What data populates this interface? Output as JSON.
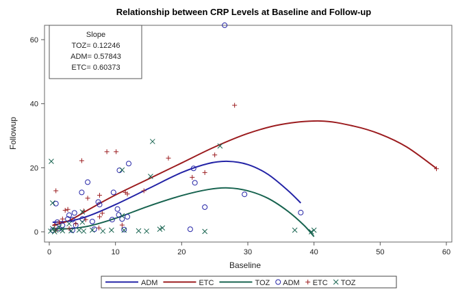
{
  "chart_data": {
    "type": "scatter",
    "title": "Relationship between CRP Levels at Baseline and Follow-up",
    "xlabel": "Baseline",
    "ylabel": "Followup",
    "xlim": [
      -1,
      61
    ],
    "ylim": [
      -3,
      66
    ],
    "xticks": [
      0,
      10,
      20,
      30,
      40,
      50,
      60
    ],
    "yticks": [
      0,
      20,
      40,
      60
    ],
    "grid": false,
    "inset": {
      "title": "Slope",
      "lines": [
        "TOZ= 0.12246",
        "ADM= 0.57843",
        "ETC= 0.60373"
      ]
    },
    "legend": {
      "placement": "bottom",
      "entries": [
        {
          "label": "ADM",
          "kind": "line",
          "color": "#2323a6"
        },
        {
          "label": "ETC",
          "kind": "line",
          "color": "#9b1b1e"
        },
        {
          "label": "TOZ",
          "kind": "line",
          "color": "#17634f"
        },
        {
          "label": "ADM",
          "kind": "circle",
          "color": "#2323a6"
        },
        {
          "label": "ETC",
          "kind": "plus",
          "color": "#9b1b1e"
        },
        {
          "label": "TOZ",
          "kind": "x",
          "color": "#17634f"
        }
      ]
    },
    "fits": [
      {
        "name": "ADM",
        "color": "#2323a6",
        "points": [
          [
            0.5,
            3
          ],
          [
            3,
            3.3
          ],
          [
            6,
            5
          ],
          [
            10,
            8.5
          ],
          [
            15,
            13.5
          ],
          [
            20,
            18.5
          ],
          [
            24,
            21.3
          ],
          [
            27,
            22
          ],
          [
            30,
            21
          ],
          [
            33,
            18
          ],
          [
            36,
            13
          ],
          [
            38,
            9
          ]
        ]
      },
      {
        "name": "ETC",
        "color": "#9b1b1e",
        "points": [
          [
            0.5,
            2
          ],
          [
            3,
            3.5
          ],
          [
            6,
            7
          ],
          [
            10,
            11.5
          ],
          [
            15,
            16.5
          ],
          [
            20,
            21.5
          ],
          [
            25,
            26.5
          ],
          [
            30,
            30.7
          ],
          [
            35,
            33.5
          ],
          [
            41,
            34.6
          ],
          [
            46,
            33
          ],
          [
            50,
            30.5
          ],
          [
            54,
            26.5
          ],
          [
            58.5,
            19.8
          ]
        ]
      },
      {
        "name": "TOZ",
        "color": "#17634f",
        "points": [
          [
            0.5,
            1
          ],
          [
            3,
            1
          ],
          [
            6,
            1.8
          ],
          [
            10,
            4.2
          ],
          [
            15,
            8
          ],
          [
            20,
            11.3
          ],
          [
            24,
            13.2
          ],
          [
            27,
            13.7
          ],
          [
            30,
            12.8
          ],
          [
            33,
            10.5
          ],
          [
            36,
            6.5
          ],
          [
            38.5,
            2
          ],
          [
            40,
            -1.5
          ]
        ]
      }
    ],
    "series": [
      {
        "name": "ADM",
        "marker": "circle",
        "color": "#2323a6",
        "points": [
          [
            26.5,
            64.5
          ],
          [
            29.5,
            11.7
          ],
          [
            38,
            6
          ],
          [
            23.5,
            7.7
          ],
          [
            21.8,
            19.8
          ],
          [
            22,
            15.3
          ],
          [
            21.3,
            0.8
          ],
          [
            12,
            21.3
          ],
          [
            10.6,
            19.2
          ],
          [
            5.8,
            15.5
          ],
          [
            4.9,
            12.3
          ],
          [
            9.7,
            12.3
          ],
          [
            7.4,
            9.3
          ],
          [
            7.6,
            8.5
          ],
          [
            10.3,
            7.1
          ],
          [
            10.5,
            5.3
          ],
          [
            11,
            4
          ],
          [
            11.8,
            4.7
          ],
          [
            9.5,
            3.8
          ],
          [
            6.5,
            3.2
          ],
          [
            5,
            4
          ],
          [
            3,
            5.2
          ],
          [
            3.8,
            5.9
          ],
          [
            3.5,
            3.8
          ],
          [
            1,
            8.8
          ],
          [
            1.2,
            3
          ],
          [
            2,
            2
          ],
          [
            2.8,
            4
          ],
          [
            3.5,
            0.5
          ],
          [
            6.8,
            0.8
          ],
          [
            11.3,
            0.7
          ],
          [
            1.5,
            1
          ],
          [
            0.5,
            0.5
          ],
          [
            4,
            2
          ]
        ]
      },
      {
        "name": "ETC",
        "marker": "plus",
        "color": "#9b1b1e",
        "points": [
          [
            28,
            39.5
          ],
          [
            58.5,
            19.7
          ],
          [
            25,
            24
          ],
          [
            23.5,
            18.5
          ],
          [
            21.6,
            17
          ],
          [
            18,
            23
          ],
          [
            14.3,
            12.8
          ],
          [
            11.5,
            12.3
          ],
          [
            11.8,
            11.8
          ],
          [
            8.7,
            25
          ],
          [
            10.1,
            25
          ],
          [
            4.9,
            22.2
          ],
          [
            1,
            12.8
          ],
          [
            5.8,
            10.5
          ],
          [
            7.6,
            11.4
          ],
          [
            7.6,
            4.7
          ],
          [
            8,
            5.8
          ],
          [
            2.4,
            6.7
          ],
          [
            2.8,
            7
          ],
          [
            5.2,
            6.5
          ],
          [
            11,
            2.1
          ],
          [
            5.5,
            3.8
          ],
          [
            4,
            2.5
          ],
          [
            1.5,
            3
          ],
          [
            2,
            4
          ],
          [
            0.8,
            2
          ],
          [
            3,
            1
          ],
          [
            7.5,
            1.2
          ],
          [
            1,
            0.5
          ]
        ]
      },
      {
        "name": "TOZ",
        "marker": "x",
        "color": "#17634f",
        "points": [
          [
            0.3,
            22
          ],
          [
            15.6,
            28.2
          ],
          [
            25.8,
            26.8
          ],
          [
            15.3,
            17.3
          ],
          [
            11,
            19.3
          ],
          [
            0.5,
            9
          ],
          [
            5,
            6.2
          ],
          [
            11,
            5
          ],
          [
            5,
            3
          ],
          [
            0.5,
            1
          ],
          [
            1,
            0.5
          ],
          [
            2,
            0.3
          ],
          [
            4.5,
            0.5
          ],
          [
            5.2,
            0.2
          ],
          [
            6.5,
            0.5
          ],
          [
            8.1,
            0.2
          ],
          [
            9.4,
            0.5
          ],
          [
            11.3,
            0.5
          ],
          [
            13.5,
            0.3
          ],
          [
            14.7,
            0.2
          ],
          [
            16.7,
            0.8
          ],
          [
            17.1,
            1.2
          ],
          [
            23.5,
            0.1
          ],
          [
            37.1,
            0.5
          ],
          [
            39.6,
            0
          ],
          [
            40,
            0.5
          ],
          [
            1.5,
            1.5
          ],
          [
            0.2,
            0.2
          ],
          [
            0.8,
            0
          ],
          [
            1.8,
            0.8
          ],
          [
            3,
            2.5
          ],
          [
            3.3,
            0.3
          ]
        ]
      }
    ]
  }
}
